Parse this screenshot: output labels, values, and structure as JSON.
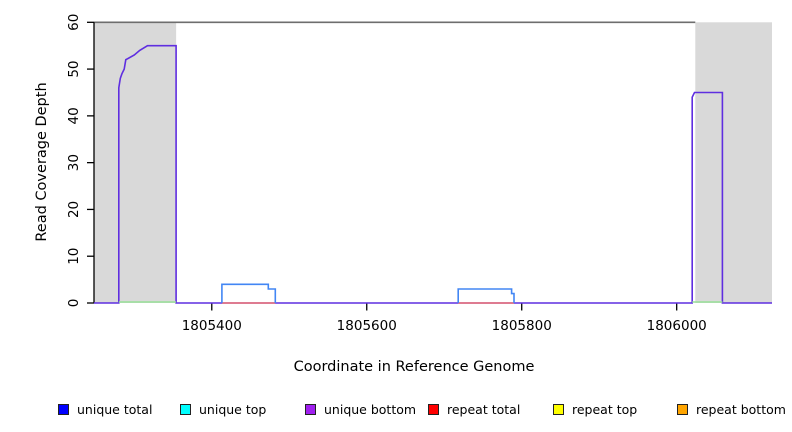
{
  "figure": {
    "background": "#ffffff"
  },
  "chart_data": {
    "type": "line",
    "subtype": "step-coverage",
    "title": "",
    "xlabel": "Coordinate in Reference Genome",
    "ylabel": "Read Coverage Depth",
    "xlim": [
      1805248,
      1806123
    ],
    "ylim": [
      0,
      60
    ],
    "x_ticks": [
      1805400,
      1805600,
      1805800,
      1806000
    ],
    "y_ticks": [
      0,
      10,
      20,
      30,
      40,
      50,
      60
    ],
    "grid": false,
    "legend_position": "bottom",
    "shaded_regions": [
      {
        "x_from": 1805248,
        "x_to": 1805354,
        "color": "#d9d9d9"
      },
      {
        "x_from": 1806024,
        "x_to": 1806123,
        "color": "#d9d9d9"
      }
    ],
    "cap_line": {
      "y": 60,
      "x_from": 1805248,
      "x_to": 1806024,
      "color": "#6e6e6e"
    },
    "series": [
      {
        "name": "unique bottom",
        "color": "#5f2ee0",
        "width": 1.6,
        "paths": [
          [
            [
              1805248,
              0
            ],
            [
              1805280,
              0
            ],
            [
              1805280,
              46
            ],
            [
              1805282,
              48
            ],
            [
              1805284,
              49
            ],
            [
              1805287,
              50
            ],
            [
              1805289,
              52
            ],
            [
              1805300,
              53
            ],
            [
              1805307,
              54
            ],
            [
              1805317,
              55
            ],
            [
              1805354,
              55
            ],
            [
              1805354,
              0
            ],
            [
              1806020,
              0
            ],
            [
              1806020,
              44
            ],
            [
              1806023,
              45
            ],
            [
              1806059,
              45
            ],
            [
              1806059,
              0
            ],
            [
              1806123,
              0
            ]
          ]
        ]
      },
      {
        "name": "overlap baseline green",
        "color": "#98e098",
        "width": 1.4,
        "draw_above": true,
        "paths": [
          [
            [
              1805280,
              0
            ],
            [
              1805354,
              0
            ]
          ],
          [
            [
              1806020,
              0
            ],
            [
              1806059,
              0
            ]
          ]
        ]
      },
      {
        "name": "repeat total",
        "color": "#ee7272",
        "width": 1.4,
        "paths": [
          [
            [
              1805413,
              0
            ],
            [
              1805482,
              0
            ]
          ],
          [
            [
              1805718,
              0
            ],
            [
              1805790,
              0
            ]
          ]
        ]
      },
      {
        "name": "unique total",
        "color": "#4286f4",
        "width": 1.6,
        "paths": [
          [
            [
              1805413,
              0
            ],
            [
              1805413,
              4
            ],
            [
              1805473,
              4
            ],
            [
              1805473,
              3
            ],
            [
              1805482,
              3
            ],
            [
              1805482,
              0
            ]
          ],
          [
            [
              1805718,
              0
            ],
            [
              1805718,
              3
            ],
            [
              1805787,
              3
            ],
            [
              1805787,
              2
            ],
            [
              1805790,
              2
            ],
            [
              1805790,
              0
            ]
          ]
        ]
      }
    ]
  },
  "legend": {
    "items": [
      {
        "label": "unique total",
        "color": "#0000ff"
      },
      {
        "label": "unique top",
        "color": "#00ffff"
      },
      {
        "label": "unique bottom",
        "color": "#a020f0"
      },
      {
        "label": "repeat total",
        "color": "#ff0000"
      },
      {
        "label": "repeat top",
        "color": "#ffff00"
      },
      {
        "label": "repeat bottom",
        "color": "#ffa500"
      }
    ]
  }
}
